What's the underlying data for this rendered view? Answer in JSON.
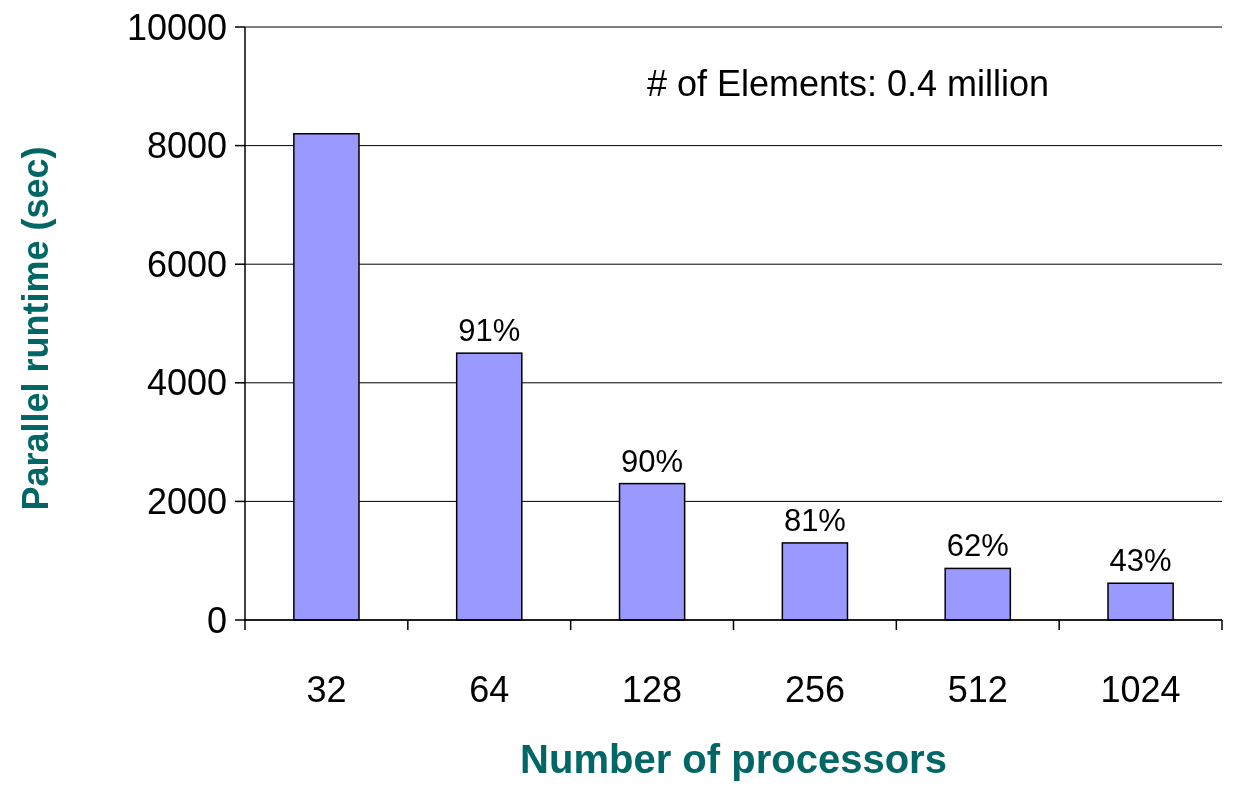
{
  "chart_data": {
    "type": "bar",
    "xlabel": "Number of processors",
    "ylabel": "Parallel runtime (sec)",
    "categories": [
      "32",
      "64",
      "128",
      "256",
      "512",
      "1024"
    ],
    "series": [
      {
        "color": "#9999ff",
        "values": [
          8200,
          4500,
          2300,
          1300,
          870,
          620
        ]
      }
    ],
    "ylim": [
      0,
      10000
    ],
    "yticks": [
      0,
      2000,
      4000,
      6000,
      8000,
      10000
    ],
    "grid": "y",
    "annotations": [
      "# of Elements: 0.4 million",
      {
        "text": "91%",
        "x": "64",
        "y": 4500
      },
      {
        "text": "90%",
        "x": "128",
        "y": 2300
      },
      {
        "text": "81%",
        "x": "256",
        "y": 1300
      },
      {
        "text": "62%",
        "x": "512",
        "y": 870
      },
      {
        "text": "43%",
        "x": "1024",
        "y": 620
      }
    ]
  }
}
